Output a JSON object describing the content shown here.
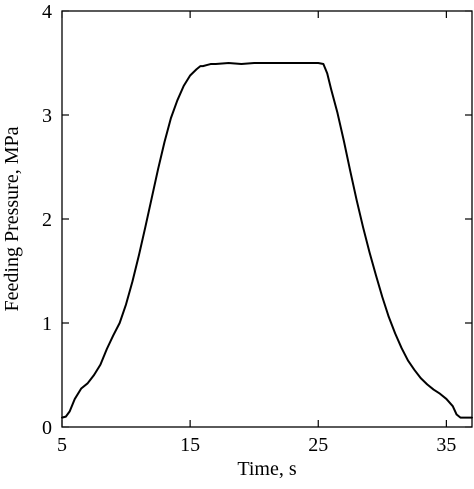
{
  "chart_data": {
    "type": "line",
    "title": "",
    "xlabel": "Time, s",
    "ylabel": "Feeding Pressure, MPa",
    "xlim": [
      5,
      37
    ],
    "ylim": [
      0,
      4
    ],
    "grid": false,
    "legend": "none",
    "x_ticks": [
      5,
      15,
      25,
      35
    ],
    "x_tick_labels": [
      "5",
      "15",
      "25",
      "35"
    ],
    "y_ticks": [
      0,
      1,
      2,
      3,
      4
    ],
    "y_tick_labels": [
      "0",
      "1",
      "2",
      "3",
      "4"
    ],
    "line_color": "#000000",
    "series": [
      {
        "x": [
          5.0,
          5.3,
          5.6,
          6.0,
          6.5,
          7.0,
          7.5,
          8.0,
          8.5,
          9.0,
          9.5,
          10.0,
          10.5,
          11.0,
          11.5,
          12.0,
          12.5,
          13.0,
          13.5,
          14.0,
          14.5,
          15.0,
          15.5,
          15.8,
          16.0,
          16.3,
          16.6,
          17.0,
          18.0,
          19.0,
          20.0,
          21.0,
          22.0,
          23.0,
          24.0,
          25.0,
          25.4,
          25.7,
          26.0,
          26.5,
          27.0,
          27.5,
          28.0,
          28.5,
          29.0,
          29.5,
          30.0,
          30.5,
          31.0,
          31.5,
          32.0,
          32.5,
          33.0,
          33.5,
          34.0,
          34.5,
          35.0,
          35.5,
          35.8,
          36.1,
          36.4,
          37.0
        ],
        "y": [
          0.09,
          0.1,
          0.15,
          0.27,
          0.37,
          0.42,
          0.5,
          0.6,
          0.75,
          0.88,
          1.0,
          1.18,
          1.4,
          1.65,
          1.92,
          2.2,
          2.48,
          2.74,
          2.97,
          3.14,
          3.28,
          3.38,
          3.44,
          3.47,
          3.47,
          3.48,
          3.49,
          3.49,
          3.5,
          3.49,
          3.5,
          3.5,
          3.5,
          3.5,
          3.5,
          3.5,
          3.49,
          3.4,
          3.25,
          3.02,
          2.75,
          2.46,
          2.18,
          1.92,
          1.68,
          1.46,
          1.25,
          1.06,
          0.9,
          0.76,
          0.64,
          0.55,
          0.47,
          0.41,
          0.36,
          0.32,
          0.27,
          0.2,
          0.12,
          0.09,
          0.09,
          0.09
        ]
      }
    ]
  }
}
